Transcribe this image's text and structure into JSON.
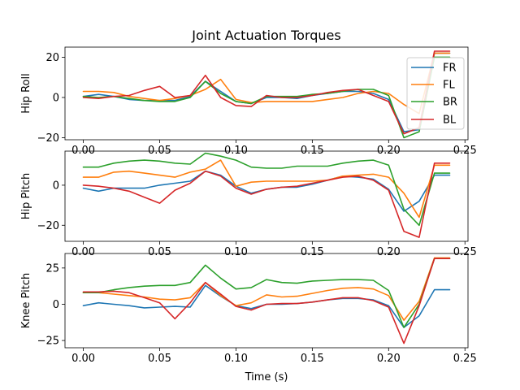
{
  "figure": {
    "title": "Joint Actuation Torques",
    "xlabel": "Time (s)"
  },
  "colors": {
    "FR": "#1f77b4",
    "FL": "#ff7f0e",
    "BR": "#2ca02c",
    "BL": "#d62728"
  },
  "chart_data": [
    {
      "type": "line",
      "title": "Joint Actuation Torques",
      "ylabel": "Hip Roll",
      "xlabel": "",
      "xlim": [
        -0.012,
        0.252
      ],
      "ylim": [
        -21,
        25
      ],
      "xticks": [
        0.0,
        0.05,
        0.1,
        0.15,
        0.2,
        0.25
      ],
      "xtick_labels": [
        "0.00",
        "0.05",
        "0.10",
        "0.15",
        "0.20",
        "0.25"
      ],
      "yticks": [
        -20,
        0,
        20
      ],
      "ytick_labels": [
        "−20",
        "0",
        "20"
      ],
      "legend": {
        "location": "upper right",
        "entries": [
          "FR",
          "FL",
          "BR",
          "BL"
        ]
      },
      "x": [
        0.0,
        0.01,
        0.02,
        0.03,
        0.04,
        0.05,
        0.06,
        0.07,
        0.08,
        0.09,
        0.1,
        0.11,
        0.12,
        0.13,
        0.14,
        0.15,
        0.16,
        0.17,
        0.18,
        0.19,
        0.2,
        0.21,
        0.22,
        0.23,
        0.24
      ],
      "series": [
        {
          "name": "FR",
          "values": [
            0.5,
            1.5,
            0.5,
            -1,
            -1.5,
            -1.5,
            -1.5,
            0.5,
            8,
            3,
            -2,
            -3,
            0,
            0,
            -0.5,
            1,
            2,
            3,
            3,
            2,
            -1,
            -17,
            -16,
            22,
            22
          ]
        },
        {
          "name": "FL",
          "values": [
            3,
            3,
            2.5,
            0.5,
            -0.5,
            -1.5,
            -0.5,
            1,
            4,
            9,
            -1,
            -2.5,
            -2,
            -2,
            -2,
            -2,
            -1,
            0,
            2,
            3,
            2,
            -3.5,
            -8,
            22,
            22
          ]
        },
        {
          "name": "BR",
          "values": [
            0.5,
            0,
            0.5,
            -0.5,
            -1.5,
            -2,
            -2,
            0,
            8,
            2,
            -2,
            -3,
            0.5,
            0.5,
            0.5,
            1.5,
            2,
            3,
            4,
            4,
            1,
            -20,
            -17,
            20,
            20
          ]
        },
        {
          "name": "BL",
          "values": [
            0,
            -0.5,
            0.5,
            1,
            3.5,
            5.5,
            0,
            1,
            11,
            0,
            -4,
            -4.5,
            1,
            0,
            0,
            1,
            2.5,
            3.5,
            4,
            1,
            -2,
            -18,
            -15,
            23,
            23
          ]
        }
      ]
    },
    {
      "type": "line",
      "ylabel": "Hip Pitch",
      "xlabel": "",
      "xlim": [
        -0.012,
        0.252
      ],
      "ylim": [
        -28,
        17
      ],
      "xticks": [
        0.0,
        0.05,
        0.1,
        0.15,
        0.2,
        0.25
      ],
      "xtick_labels": [
        "0.00",
        "0.05",
        "0.10",
        "0.15",
        "0.20",
        "0.25"
      ],
      "yticks": [
        -20,
        0
      ],
      "ytick_labels": [
        "−20",
        "0"
      ],
      "x": [
        0.0,
        0.01,
        0.02,
        0.03,
        0.04,
        0.05,
        0.06,
        0.07,
        0.08,
        0.09,
        0.1,
        0.11,
        0.12,
        0.13,
        0.14,
        0.15,
        0.16,
        0.17,
        0.18,
        0.19,
        0.2,
        0.21,
        0.22,
        0.23,
        0.24
      ],
      "series": [
        {
          "name": "FR",
          "values": [
            -1.5,
            -3,
            -1.5,
            -1.5,
            -1.5,
            0,
            1,
            2,
            7,
            5,
            -0.5,
            -4,
            -2,
            -1,
            -1,
            0.5,
            2.5,
            4.5,
            4,
            3,
            -2,
            -13,
            -8,
            5,
            5
          ]
        },
        {
          "name": "FL",
          "values": [
            4,
            4,
            6.5,
            7,
            6,
            5,
            4,
            6.5,
            8,
            12.5,
            -0.5,
            1.5,
            2,
            2,
            2,
            2,
            2.5,
            4.5,
            5,
            5.5,
            4,
            -4,
            -16,
            10,
            10
          ]
        },
        {
          "name": "BR",
          "values": [
            9,
            9,
            11,
            12,
            12.5,
            12,
            11,
            10.5,
            16,
            14.5,
            12.5,
            9,
            8.5,
            8.5,
            9.5,
            9.5,
            9.5,
            11,
            12,
            12.5,
            10,
            -12,
            -20,
            6,
            6
          ]
        },
        {
          "name": "BL",
          "values": [
            0,
            -0.5,
            -1.5,
            -3,
            -6,
            -9,
            -2.5,
            1,
            7,
            4.5,
            -1.5,
            -4.5,
            -2,
            -1,
            -0.5,
            1,
            2.5,
            4,
            4.5,
            2.5,
            -2.5,
            -23,
            -26,
            11,
            11
          ]
        }
      ]
    },
    {
      "type": "line",
      "ylabel": "Knee Pitch",
      "xlabel": "Time (s)",
      "xlim": [
        -0.012,
        0.252
      ],
      "ylim": [
        -30,
        35
      ],
      "xticks": [
        0.0,
        0.05,
        0.1,
        0.15,
        0.2,
        0.25
      ],
      "xtick_labels": [
        "0.00",
        "0.05",
        "0.10",
        "0.15",
        "0.20",
        "0.25"
      ],
      "yticks": [
        -25,
        0,
        25
      ],
      "ytick_labels": [
        "−25",
        "0",
        "25"
      ],
      "x": [
        0.0,
        0.01,
        0.02,
        0.03,
        0.04,
        0.05,
        0.06,
        0.07,
        0.08,
        0.09,
        0.1,
        0.11,
        0.12,
        0.13,
        0.14,
        0.15,
        0.16,
        0.17,
        0.18,
        0.19,
        0.2,
        0.21,
        0.22,
        0.23,
        0.24
      ],
      "series": [
        {
          "name": "FR",
          "values": [
            -1,
            1,
            0,
            -1,
            -2.5,
            -2,
            -1.5,
            -2,
            13,
            5.5,
            -1,
            -3,
            0,
            0,
            0.5,
            1.5,
            3,
            4,
            4,
            3,
            -1,
            -16,
            -8,
            10,
            10
          ]
        },
        {
          "name": "FL",
          "values": [
            8,
            8,
            7,
            6,
            5,
            3.5,
            3,
            4.5,
            15,
            6,
            -1,
            1,
            6.5,
            5,
            5.5,
            7.5,
            9.5,
            11,
            11.5,
            10.5,
            6,
            -11,
            2,
            32,
            32
          ]
        },
        {
          "name": "BR",
          "values": [
            8,
            8,
            10,
            11.5,
            12.5,
            13,
            13,
            15,
            27,
            18,
            10.5,
            11.5,
            17,
            15,
            14.5,
            16,
            16.5,
            17,
            17,
            16.5,
            9.5,
            -16,
            0,
            31.5,
            31.5
          ]
        },
        {
          "name": "BL",
          "values": [
            8.5,
            8.5,
            9,
            8,
            4.5,
            1,
            -10,
            1,
            15,
            7,
            -1.5,
            -4,
            0,
            0.5,
            0.5,
            1.5,
            3,
            4.5,
            4.5,
            2.5,
            -2,
            -27,
            -1,
            31.5,
            31.5
          ]
        }
      ]
    }
  ]
}
